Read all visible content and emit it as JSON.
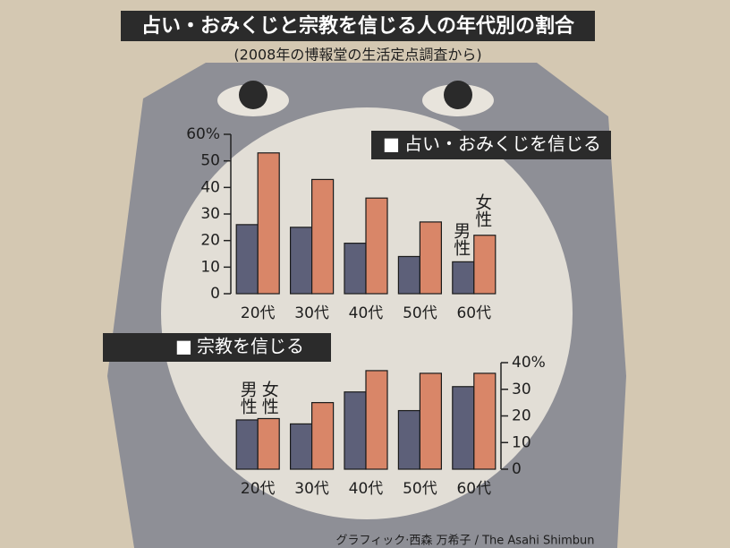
{
  "title": "占い・おみくじと宗教を信じる人の年代別の割合",
  "subtitle": "(2008年の博報堂の生活定点調査から)",
  "credit": "グラフィック·西森 万希子 / The Asahi Shimbun",
  "chart_data": [
    {
      "type": "bar",
      "title": "占い・おみくじを信じる",
      "categories": [
        "20代",
        "30代",
        "40代",
        "50代",
        "60代"
      ],
      "series": [
        {
          "name": "男性",
          "color": "#5d6079",
          "values": [
            26,
            25,
            19,
            14,
            12
          ]
        },
        {
          "name": "女性",
          "color": "#d98668",
          "values": [
            53,
            43,
            36,
            27,
            22
          ]
        }
      ],
      "ylim": [
        0,
        60
      ],
      "yticks": [
        0,
        10,
        20,
        30,
        40,
        50,
        {
          "value": 60,
          "label": "60%"
        }
      ],
      "y_axis_position": "left"
    },
    {
      "type": "bar",
      "title": "宗教を信じる",
      "categories": [
        "20代",
        "30代",
        "40代",
        "50代",
        "60代"
      ],
      "series": [
        {
          "name": "男性",
          "color": "#5d6079",
          "values": [
            18.5,
            17,
            29,
            22,
            31
          ]
        },
        {
          "name": "女性",
          "color": "#d98668",
          "values": [
            19,
            25,
            37,
            36,
            36
          ]
        }
      ],
      "ylim": [
        0,
        40
      ],
      "yticks": [
        0,
        10,
        20,
        30,
        {
          "value": 40,
          "label": "40%"
        }
      ],
      "y_axis_position": "right"
    }
  ]
}
